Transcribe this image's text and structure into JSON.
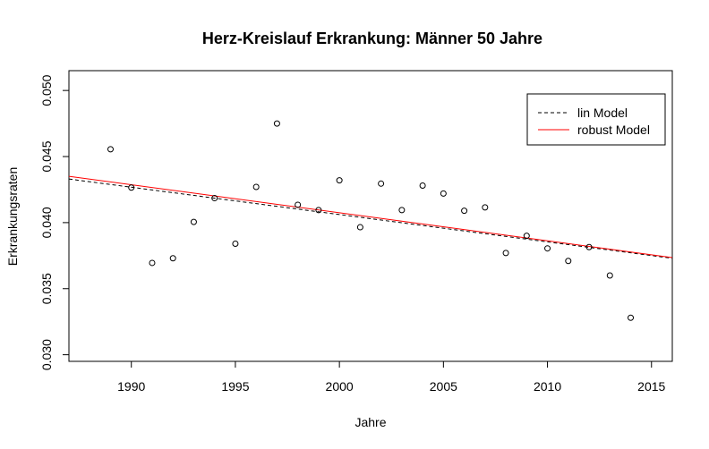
{
  "chart_data": {
    "type": "scatter",
    "title": "Herz-Kreislauf Erkrankung: Männer 50 Jahre",
    "xlabel": "Jahre",
    "ylabel": "Erkrankungsraten",
    "xlim": [
      1987,
      2016
    ],
    "ylim": [
      0.0295,
      0.0515
    ],
    "x_ticks": [
      1990,
      1995,
      2000,
      2005,
      2010,
      2015
    ],
    "y_ticks": [
      "0.030",
      "0.035",
      "0.040",
      "0.045",
      "0.050"
    ],
    "points": [
      {
        "x": 1989,
        "y": 0.04555
      },
      {
        "x": 1990,
        "y": 0.04265
      },
      {
        "x": 1991,
        "y": 0.03695
      },
      {
        "x": 1992,
        "y": 0.0373
      },
      {
        "x": 1993,
        "y": 0.04005
      },
      {
        "x": 1994,
        "y": 0.04185
      },
      {
        "x": 1995,
        "y": 0.0384
      },
      {
        "x": 1996,
        "y": 0.0427
      },
      {
        "x": 1997,
        "y": 0.0475
      },
      {
        "x": 1998,
        "y": 0.04135
      },
      {
        "x": 1999,
        "y": 0.04095
      },
      {
        "x": 2000,
        "y": 0.0432
      },
      {
        "x": 2001,
        "y": 0.03965
      },
      {
        "x": 2002,
        "y": 0.04295
      },
      {
        "x": 2003,
        "y": 0.04095
      },
      {
        "x": 2004,
        "y": 0.0428
      },
      {
        "x": 2005,
        "y": 0.0422
      },
      {
        "x": 2006,
        "y": 0.0409
      },
      {
        "x": 2007,
        "y": 0.04115
      },
      {
        "x": 2008,
        "y": 0.0377
      },
      {
        "x": 2009,
        "y": 0.039
      },
      {
        "x": 2010,
        "y": 0.03805
      },
      {
        "x": 2011,
        "y": 0.0371
      },
      {
        "x": 2012,
        "y": 0.03815
      },
      {
        "x": 2013,
        "y": 0.036
      },
      {
        "x": 2014,
        "y": 0.0328
      }
    ],
    "lines": [
      {
        "name": "lin Model",
        "color": "#000000",
        "dash": true,
        "x": [
          1987,
          2016
        ],
        "y": [
          0.0433,
          0.0373
        ]
      },
      {
        "name": "robust Model",
        "color": "#ff0000",
        "dash": false,
        "x": [
          1987,
          2016
        ],
        "y": [
          0.0435,
          0.03735
        ]
      }
    ],
    "legend": {
      "position": "top-right",
      "entries": [
        {
          "label": "lin Model",
          "color": "#000000",
          "dash": true
        },
        {
          "label": "robust Model",
          "color": "#ff0000",
          "dash": false
        }
      ]
    }
  }
}
